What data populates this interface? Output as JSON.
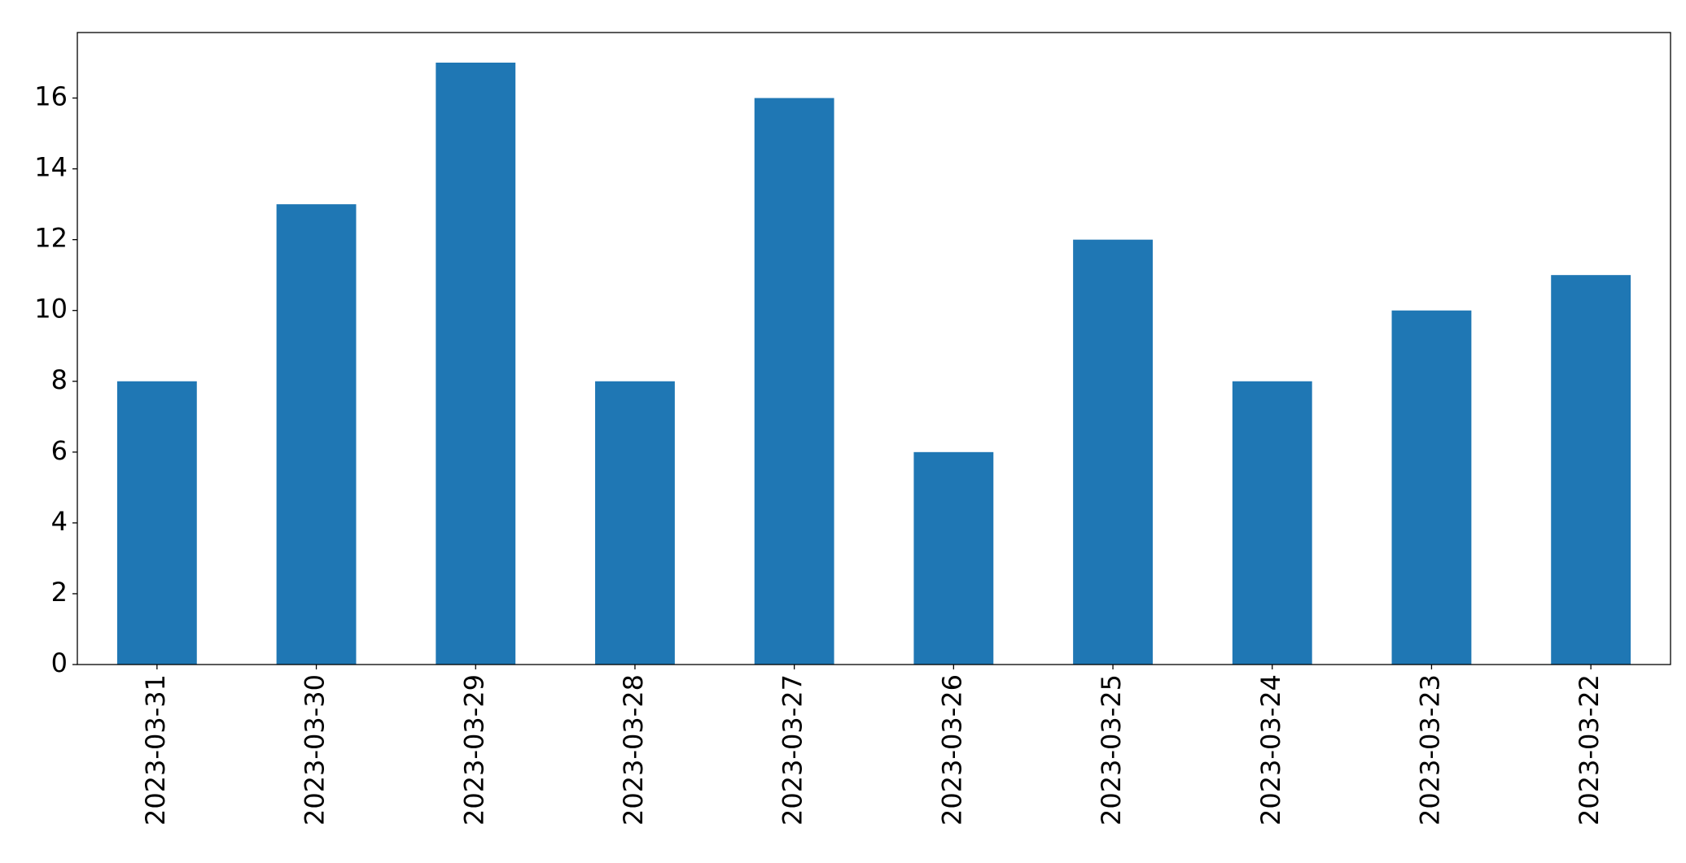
{
  "chart_data": {
    "type": "bar",
    "categories": [
      "2023-03-31",
      "2023-03-30",
      "2023-03-29",
      "2023-03-28",
      "2023-03-27",
      "2023-03-26",
      "2023-03-25",
      "2023-03-24",
      "2023-03-23",
      "2023-03-22"
    ],
    "values": [
      8,
      13,
      17,
      8,
      16,
      6,
      12,
      8,
      10,
      11
    ],
    "color": "#1f77b4",
    "ylim": [
      0,
      17.85
    ],
    "yticks": [
      0,
      2,
      4,
      6,
      8,
      10,
      12,
      14,
      16
    ],
    "grid": false
  }
}
